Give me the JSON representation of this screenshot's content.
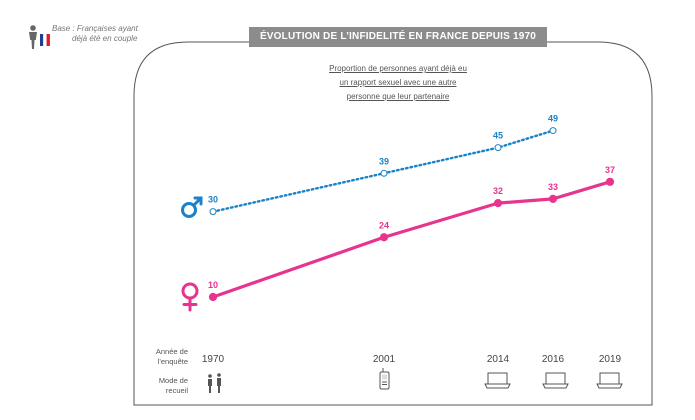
{
  "base_note": {
    "line1": "Base : Françaises ayant",
    "line2": "déjà été en couple",
    "icons": [
      "person-icon",
      "french-flag-icon"
    ]
  },
  "title": "ÉVOLUTION DE L’INFIDELITÉ EN FRANCE  DEPUIS 1970",
  "subtitle_lines": [
    "Proportion de personnes ayant déjà eu",
    "un rapport sexuel avec une autre",
    "personne que leur partenaire"
  ],
  "row_labels": {
    "year": [
      "Année de",
      "l’enquête"
    ],
    "mode": [
      "Mode de",
      "recueil"
    ]
  },
  "chart_data": {
    "type": "line",
    "x": [
      1970,
      2001,
      2014,
      2016,
      2019
    ],
    "categories": [
      "1970",
      "2001",
      "2014",
      "2016",
      "2019"
    ],
    "ylim": [
      0,
      55
    ],
    "series": [
      {
        "name": "Hommes",
        "symbol": "male",
        "values": [
          30,
          39,
          45,
          49
        ],
        "x": [
          1970,
          2001,
          2014,
          2016
        ],
        "color": "#1a82c8",
        "style": "dotted"
      },
      {
        "name": "Femmes",
        "symbol": "female",
        "values": [
          10,
          24,
          32,
          33,
          37
        ],
        "x": [
          1970,
          2001,
          2014,
          2016,
          2019
        ],
        "color": "#e6348f",
        "style": "solid"
      }
    ],
    "collection_modes": [
      "face-to-face-icon",
      "phone-icon",
      "laptop-icon",
      "laptop-icon",
      "laptop-icon"
    ]
  },
  "colors": {
    "male": "#1a82c8",
    "female": "#e6348f",
    "frame": "#555555",
    "title_bg": "#8c8c8c"
  }
}
